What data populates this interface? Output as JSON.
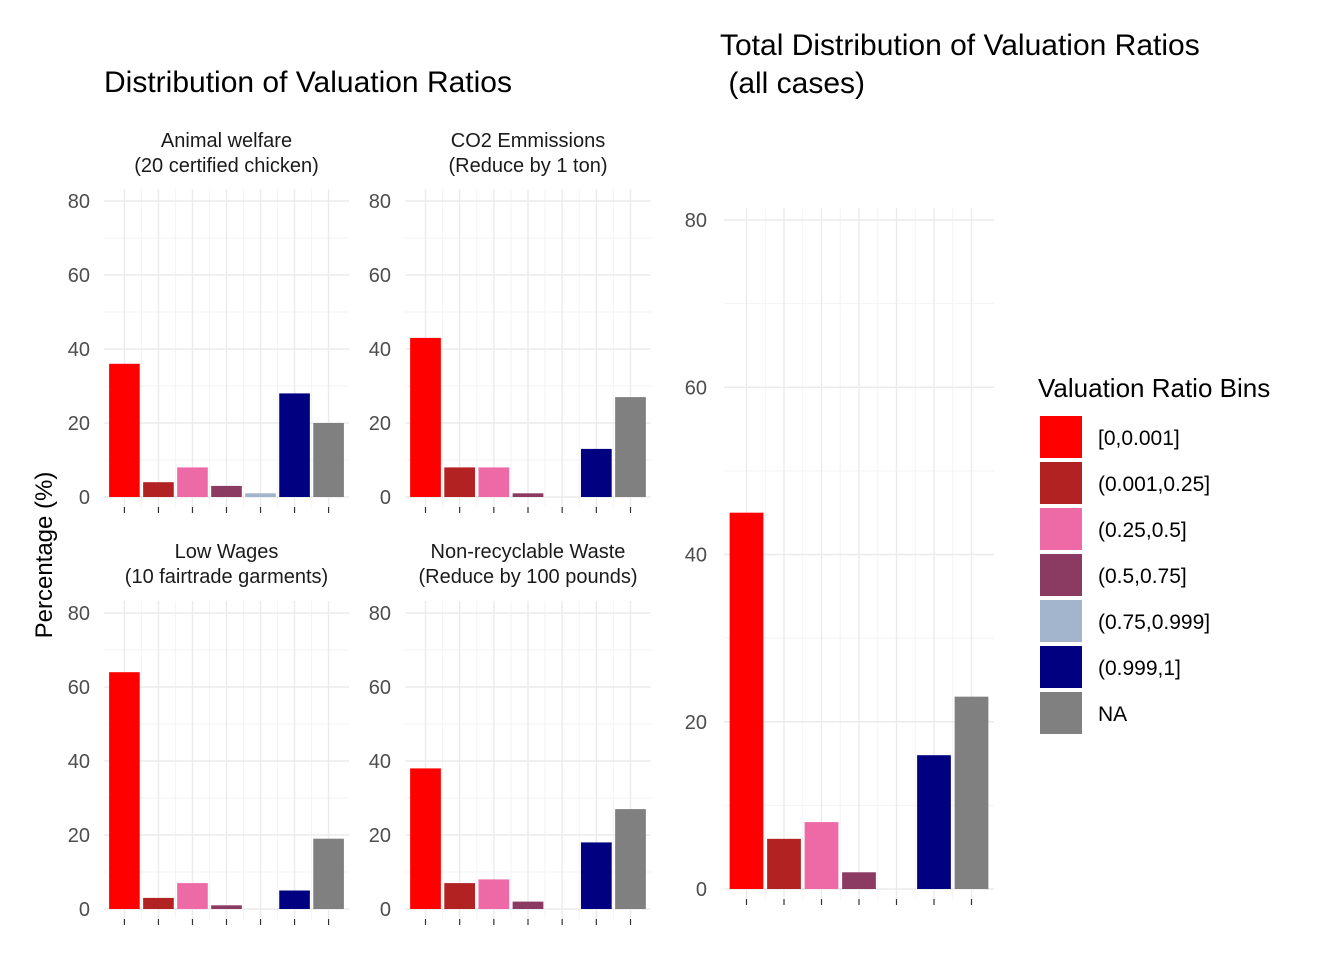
{
  "left_title": "Distribution of Valuation Ratios",
  "right_title_line1": "Total Distribution of Valuation Ratios",
  "right_title_line2": " (all cases)",
  "ylabel": "Percentage (%)",
  "legend": {
    "title": "Valuation Ratio Bins",
    "entries": [
      {
        "label": "[0,0.001]",
        "color": "#FF0000"
      },
      {
        "label": "(0.001,0.25]",
        "color": "#B22222"
      },
      {
        "label": "(0.25,0.5]",
        "color": "#EE6AA7"
      },
      {
        "label": "(0.5,0.75]",
        "color": "#8B3A62"
      },
      {
        "label": "(0.75,0.999]",
        "color": "#A2B5CD"
      },
      {
        "label": "(0.999,1]",
        "color": "#000080"
      },
      {
        "label": "NA",
        "color": "#808080"
      }
    ]
  },
  "chart_data": [
    {
      "type": "bar",
      "facet_title_line1": "Animal welfare",
      "facet_title_line2": "(20 certified chicken)",
      "categories": [
        "[0,0.001]",
        "(0.001,0.25]",
        "(0.25,0.5]",
        "(0.5,0.75]",
        "(0.75,0.999]",
        "(0.999,1]",
        "NA"
      ],
      "values": [
        36,
        4,
        8,
        3,
        1,
        28,
        20
      ],
      "ylim": [
        0,
        80
      ],
      "yticks": [
        0,
        20,
        40,
        60,
        80
      ]
    },
    {
      "type": "bar",
      "facet_title_line1": "CO2 Emmissions",
      "facet_title_line2": " (Reduce by 1 ton)",
      "categories": [
        "[0,0.001]",
        "(0.001,0.25]",
        "(0.25,0.5]",
        "(0.5,0.75]",
        "(0.75,0.999]",
        "(0.999,1]",
        "NA"
      ],
      "values": [
        43,
        8,
        8,
        1,
        0,
        13,
        27
      ],
      "ylim": [
        0,
        80
      ],
      "yticks": [
        0,
        20,
        40,
        60,
        80
      ]
    },
    {
      "type": "bar",
      "facet_title_line1": "Low Wages",
      "facet_title_line2": "(10 fairtrade garments)",
      "categories": [
        "[0,0.001]",
        "(0.001,0.25]",
        "(0.25,0.5]",
        "(0.5,0.75]",
        "(0.75,0.999]",
        "(0.999,1]",
        "NA"
      ],
      "values": [
        64,
        3,
        7,
        1,
        0,
        5,
        19
      ],
      "ylim": [
        0,
        80
      ],
      "yticks": [
        0,
        20,
        40,
        60,
        80
      ]
    },
    {
      "type": "bar",
      "facet_title_line1": "Non-recyclable Waste",
      "facet_title_line2": "(Reduce by 100 pounds)",
      "categories": [
        "[0,0.001]",
        "(0.001,0.25]",
        "(0.25,0.5]",
        "(0.5,0.75]",
        "(0.75,0.999]",
        "(0.999,1]",
        "NA"
      ],
      "values": [
        38,
        7,
        8,
        2,
        0,
        18,
        27
      ],
      "ylim": [
        0,
        80
      ],
      "yticks": [
        0,
        20,
        40,
        60,
        80
      ]
    },
    {
      "type": "bar",
      "categories": [
        "[0,0.001]",
        "(0.001,0.25]",
        "(0.25,0.5]",
        "(0.5,0.75]",
        "(0.75,0.999]",
        "(0.999,1]",
        "NA"
      ],
      "values": [
        45,
        6,
        8,
        2,
        0,
        16,
        23
      ],
      "ylim": [
        0,
        80
      ],
      "yticks": [
        0,
        20,
        40,
        60,
        80
      ]
    }
  ]
}
